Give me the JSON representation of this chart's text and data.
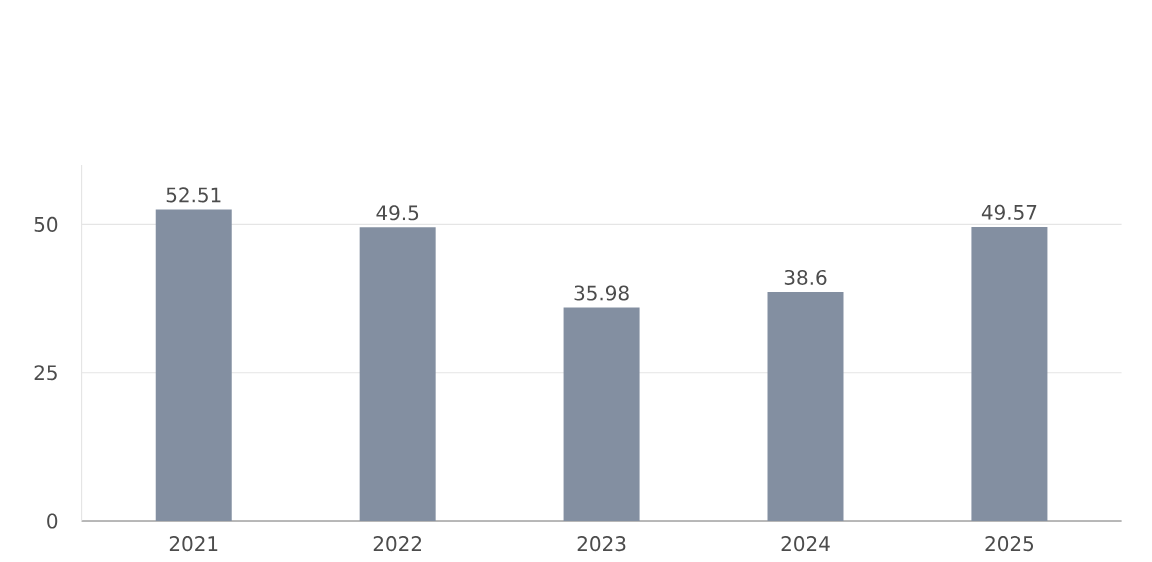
{
  "chart_data": {
    "type": "bar",
    "categories": [
      "2021",
      "2022",
      "2023",
      "2024",
      "2025"
    ],
    "values": [
      52.51,
      49.5,
      35.98,
      38.6,
      49.57
    ],
    "color": "#838fa1",
    "ylim": [
      0,
      60
    ],
    "yticks": [
      0,
      25,
      50
    ],
    "grid": "y",
    "data_labels": true
  }
}
